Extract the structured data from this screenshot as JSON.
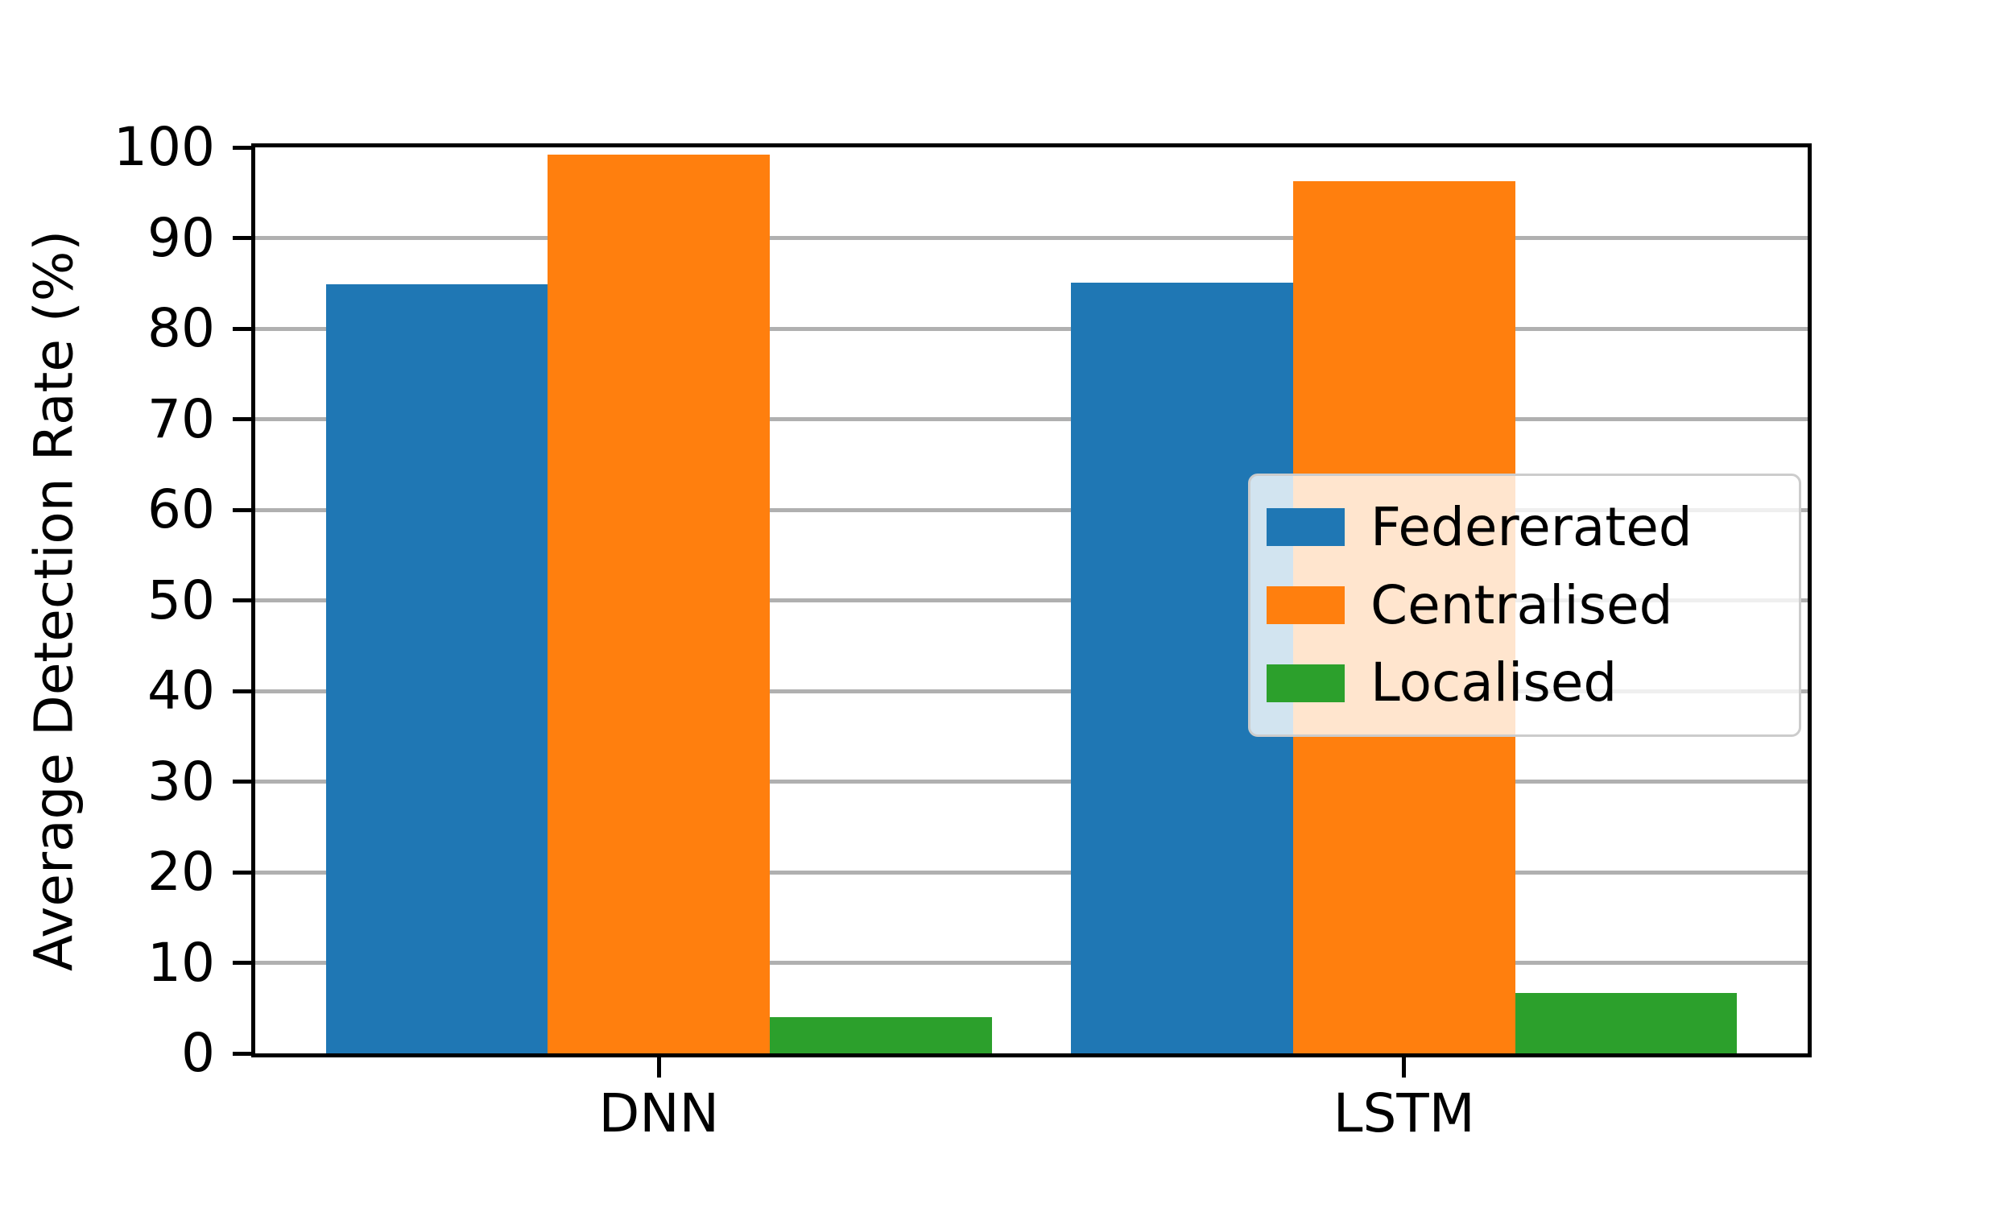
{
  "chart_data": {
    "type": "bar",
    "title": "",
    "xlabel": "",
    "ylabel": "Average Detection Rate (%)",
    "categories": [
      "DNN",
      "LSTM"
    ],
    "series": [
      {
        "name": "Federerated",
        "color": "#1f77b4",
        "values": [
          84.9,
          85.1
        ]
      },
      {
        "name": "Centralised",
        "color": "#ff7f0e",
        "values": [
          99.2,
          96.3
        ]
      },
      {
        "name": "Localised",
        "color": "#2ca02c",
        "values": [
          4.0,
          6.7
        ]
      }
    ],
    "ylim": [
      0,
      100
    ],
    "yticks": [
      0,
      10,
      20,
      30,
      40,
      50,
      60,
      70,
      80,
      90,
      100
    ],
    "grid_values": [
      10,
      20,
      30,
      40,
      50,
      60,
      70,
      80,
      90
    ],
    "grid": "horizontal",
    "grid_color": "#b0b0b0",
    "axis_color": "#000000",
    "legend_position": "center-right"
  }
}
